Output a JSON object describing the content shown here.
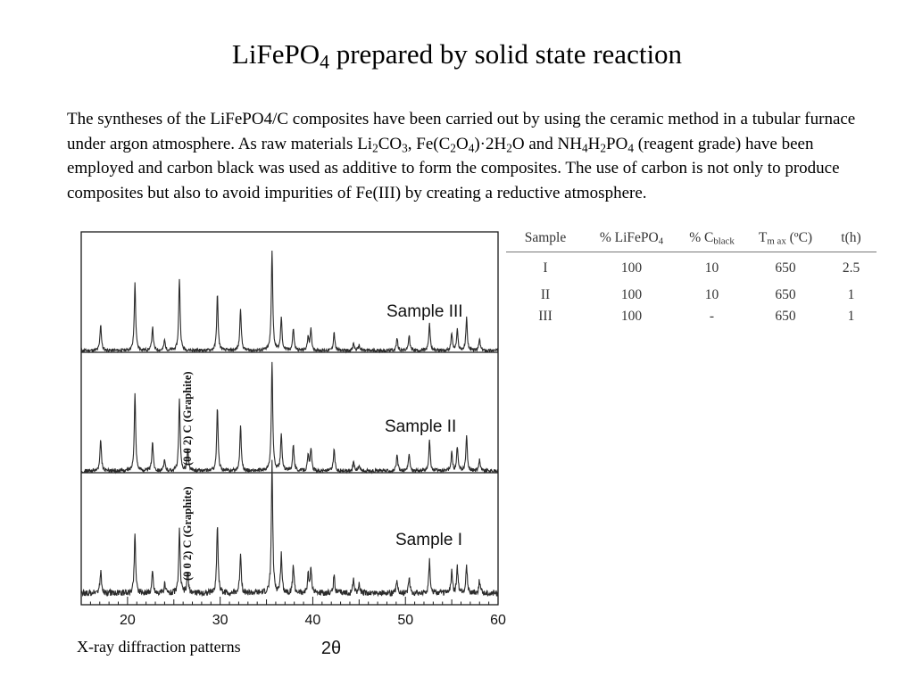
{
  "slide": {
    "title": {
      "main": "LiFePO",
      "sub": "4",
      "rest": " prepared by solid state reaction"
    },
    "paragraph": {
      "t1": "The syntheses of the LiFePO4/C composites have been carried out by using the ceramic method in a tubular furnace under argon atmosphere. As raw materials Li",
      "s1": "2",
      "t2": "CO",
      "s2": "3",
      "t3": ", Fe(C",
      "s3": "2",
      "t4": "O",
      "s4": "4",
      "t5": ")·2H",
      "s5": "2",
      "t6": "O and NH",
      "s6": "4",
      "t7": "H",
      "s7": "2",
      "t8": "PO",
      "s8": "4",
      "t9": " (reagent grade) have been employed and carbon black was used as additive to form the composites. The use of carbon is not only to produce composites but also to avoid impurities of Fe(III) by creating a reductive atmosphere."
    },
    "caption": "X-ray diffraction patterns"
  },
  "table": {
    "headers": {
      "sample": "Sample",
      "lifepo4": {
        "pre": "% LiFePO",
        "sub": "4"
      },
      "cblack": {
        "pre": "% C",
        "sub": "black"
      },
      "tmax": {
        "pre": "T",
        "sub": "m ax",
        "post": " (ºC)"
      },
      "time": "t(h)"
    },
    "rows": [
      {
        "sample": "I",
        "lifepo4": "100",
        "cblack": "10",
        "tmax": "650",
        "time": "2.5"
      },
      {
        "sample": "II",
        "lifepo4": "100",
        "cblack": "10",
        "tmax": "650",
        "time": "1"
      },
      {
        "sample": "III",
        "lifepo4": "100",
        "cblack": "-",
        "tmax": "650",
        "time": "1"
      }
    ]
  },
  "chart_data": {
    "type": "line",
    "xlabel": "2θ",
    "ylabel": "",
    "xlim": [
      15,
      60
    ],
    "x_ticks": [
      20,
      30,
      40,
      50,
      60
    ],
    "grid": false,
    "annotations": [
      "(0 0 2) C (Graphite)",
      "(0 0 2) C (Graphite)"
    ],
    "series": [
      {
        "name": "Sample III",
        "baseline_noise": 0.3,
        "peaks": [
          [
            17.1,
            2.6
          ],
          [
            20.8,
            6.6
          ],
          [
            22.7,
            2.3
          ],
          [
            24.0,
            1.0
          ],
          [
            25.6,
            7.1
          ],
          [
            29.7,
            5.5
          ],
          [
            32.2,
            4.2
          ],
          [
            35.6,
            9.9
          ],
          [
            36.6,
            3.2
          ],
          [
            37.9,
            2.2
          ],
          [
            39.5,
            1.4
          ],
          [
            39.8,
            2.0
          ],
          [
            42.3,
            1.8
          ],
          [
            44.4,
            0.7
          ],
          [
            45.0,
            0.5
          ],
          [
            49.1,
            1.2
          ],
          [
            50.4,
            1.5
          ],
          [
            52.6,
            2.6
          ],
          [
            55.0,
            1.7
          ],
          [
            55.6,
            2.0
          ],
          [
            56.6,
            3.2
          ],
          [
            58.0,
            1.1
          ]
        ]
      },
      {
        "name": "Sample II",
        "baseline_noise": 0.35,
        "peaks": [
          [
            17.1,
            3.0
          ],
          [
            20.8,
            7.6
          ],
          [
            22.7,
            2.9
          ],
          [
            24.0,
            1.0
          ],
          [
            25.6,
            7.0
          ],
          [
            26.5,
            2.1
          ],
          [
            29.7,
            6.2
          ],
          [
            32.2,
            4.5
          ],
          [
            35.6,
            10.7
          ],
          [
            36.6,
            3.6
          ],
          [
            37.9,
            2.7
          ],
          [
            39.5,
            1.5
          ],
          [
            39.8,
            2.1
          ],
          [
            42.3,
            2.2
          ],
          [
            44.4,
            0.9
          ],
          [
            45.0,
            0.6
          ],
          [
            49.1,
            1.5
          ],
          [
            50.4,
            1.7
          ],
          [
            52.6,
            3.0
          ],
          [
            55.0,
            1.8
          ],
          [
            55.6,
            2.3
          ],
          [
            56.6,
            3.4
          ],
          [
            58.0,
            1.2
          ]
        ]
      },
      {
        "name": "Sample I",
        "baseline_noise": 0.6,
        "peaks": [
          [
            17.1,
            2.2
          ],
          [
            20.8,
            5.8
          ],
          [
            22.7,
            2.1
          ],
          [
            24.0,
            0.9
          ],
          [
            25.6,
            6.2
          ],
          [
            26.5,
            2.1
          ],
          [
            29.7,
            6.8
          ],
          [
            32.2,
            4.0
          ],
          [
            35.6,
            12.8
          ],
          [
            36.6,
            3.8
          ],
          [
            37.9,
            2.7
          ],
          [
            39.5,
            1.7
          ],
          [
            39.8,
            2.5
          ],
          [
            42.3,
            1.8
          ],
          [
            44.4,
            1.4
          ],
          [
            45.0,
            0.8
          ],
          [
            49.1,
            1.3
          ],
          [
            50.4,
            1.6
          ],
          [
            52.6,
            3.3
          ],
          [
            55.0,
            2.2
          ],
          [
            55.6,
            2.5
          ],
          [
            56.6,
            2.7
          ],
          [
            58.0,
            1.3
          ]
        ]
      }
    ]
  }
}
